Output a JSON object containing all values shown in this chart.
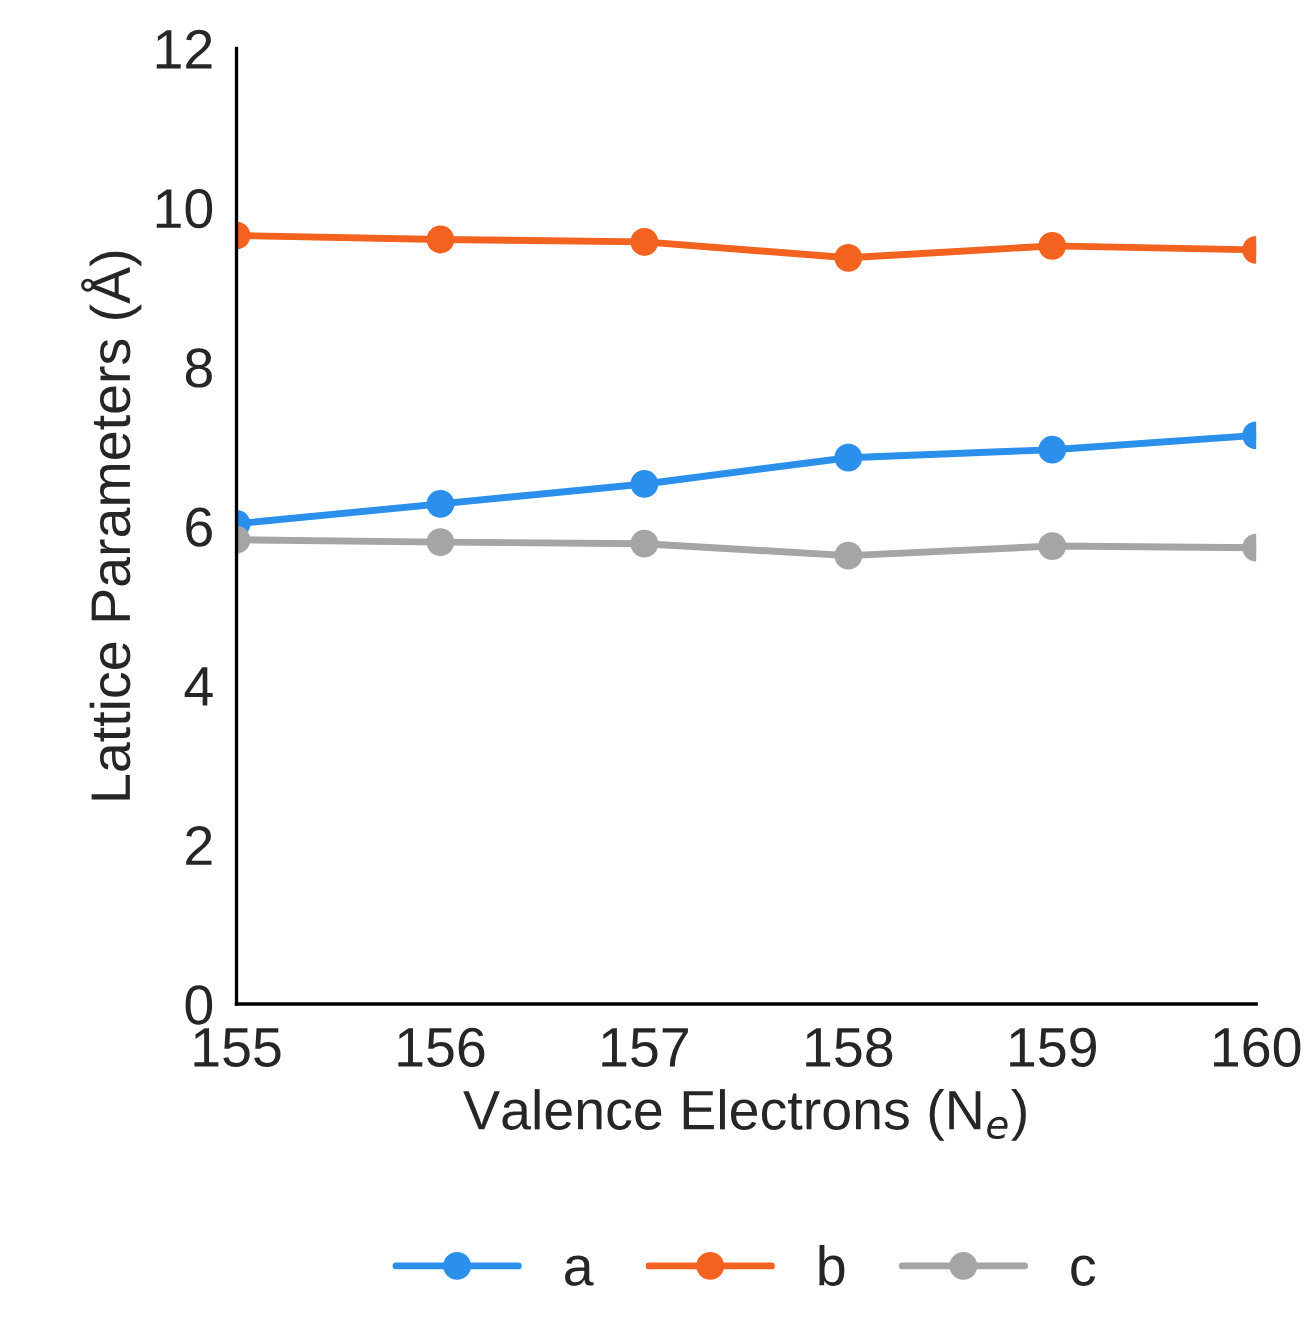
{
  "chart_data": {
    "type": "line",
    "xlabel": "Valence Electrons (N$_{e}$)",
    "ylabel": "Lattice Parameters (Å)",
    "x": [
      155,
      156,
      157,
      158,
      159,
      160
    ],
    "series": [
      {
        "name": "a",
        "color": "#2b90ec",
        "values": [
          6.03,
          6.28,
          6.53,
          6.86,
          6.96,
          7.14
        ]
      },
      {
        "name": "b",
        "color": "#f4621f",
        "values": [
          9.65,
          9.6,
          9.57,
          9.37,
          9.52,
          9.47
        ]
      },
      {
        "name": "c",
        "color": "#a5a5a5",
        "values": [
          5.83,
          5.8,
          5.78,
          5.63,
          5.75,
          5.73
        ]
      }
    ],
    "xlim": [
      155,
      160
    ],
    "xticks": [
      155,
      156,
      157,
      158,
      159,
      160
    ],
    "ylim": [
      0,
      12
    ],
    "yticks": [
      0,
      2,
      4,
      6,
      8,
      10,
      12
    ],
    "grid": false,
    "legend": "bottom",
    "marker": "circle",
    "line_style": "solid"
  }
}
